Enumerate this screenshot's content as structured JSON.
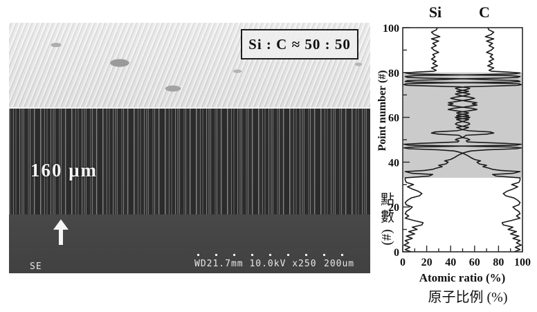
{
  "sem_image": {
    "ratio_box_label": "Si : C ≈ 50 : 50",
    "thickness_label": "160 μm",
    "detector_label": "SE",
    "metadata_label": "WD21.7mm 10.0kV x250",
    "scalebar_label": "200um"
  },
  "chart_data": {
    "type": "line",
    "title": "",
    "series_labels": [
      "Si",
      "C"
    ],
    "xlabel": "Atomic ratio (%)",
    "xlabel_zh": "原子比例 (%)",
    "ylabel": "Point number (#)",
    "ylabel_zh_chars": [
      "點",
      "數",
      "(#)"
    ],
    "xlim": [
      0,
      100
    ],
    "ylim": [
      0,
      100
    ],
    "x_ticks": [
      0,
      20,
      40,
      60,
      80,
      100
    ],
    "y_ticks": [
      0,
      20,
      40,
      60,
      80,
      100
    ],
    "minor_tick_step": 10,
    "grid": false,
    "legend_position": "above-plot",
    "shaded_band_y": [
      33,
      80
    ],
    "band_color": "#cbcbcb",
    "axis_color": "#2a2a2a",
    "line_color": "#1a1a1a",
    "note": "EDS line scan: atomic ratio (x) vs point number (y); Si and C converge to ~50:50 inside shaded film region (points 33-80)",
    "series": [
      {
        "name": "Si",
        "points": [
          [
            0,
            7
          ],
          [
            1,
            2
          ],
          [
            2,
            6
          ],
          [
            3,
            1
          ],
          [
            4,
            5
          ],
          [
            5,
            2
          ],
          [
            6,
            8
          ],
          [
            7,
            3
          ],
          [
            8,
            10
          ],
          [
            9,
            5
          ],
          [
            10,
            12
          ],
          [
            11,
            8
          ],
          [
            12,
            16
          ],
          [
            13,
            17
          ],
          [
            14,
            9
          ],
          [
            15,
            2
          ],
          [
            16,
            5
          ],
          [
            17,
            2
          ],
          [
            18,
            3
          ],
          [
            19,
            6
          ],
          [
            20,
            8
          ],
          [
            21,
            3
          ],
          [
            22,
            2
          ],
          [
            23,
            4
          ],
          [
            24,
            7
          ],
          [
            25,
            14
          ],
          [
            26,
            16
          ],
          [
            27,
            13
          ],
          [
            28,
            8
          ],
          [
            29,
            4
          ],
          [
            30,
            9
          ],
          [
            31,
            3
          ],
          [
            32,
            2
          ],
          [
            33,
            2
          ],
          [
            33.8,
            22
          ],
          [
            34.5,
            25
          ],
          [
            35,
            8
          ],
          [
            35.8,
            2
          ],
          [
            36.3,
            18
          ],
          [
            36.8,
            25
          ],
          [
            37.3,
            28
          ],
          [
            38,
            33
          ],
          [
            38.6,
            30
          ],
          [
            39.2,
            36
          ],
          [
            40,
            38
          ],
          [
            40.6,
            35
          ],
          [
            41.2,
            40
          ],
          [
            42,
            43
          ],
          [
            43,
            46
          ],
          [
            44,
            50
          ],
          [
            44.5,
            53
          ],
          [
            45,
            57
          ],
          [
            45.5,
            70
          ],
          [
            46,
            95
          ],
          [
            46.4,
            99
          ],
          [
            46.8,
            90
          ],
          [
            47.2,
            45
          ],
          [
            47.6,
            5
          ],
          [
            48,
            1
          ],
          [
            48.4,
            15
          ],
          [
            49,
            46
          ],
          [
            49.5,
            47
          ],
          [
            50,
            44
          ],
          [
            50.5,
            46
          ],
          [
            51,
            50
          ],
          [
            52,
            47
          ],
          [
            52.5,
            30
          ],
          [
            53,
            24
          ],
          [
            53.5,
            27
          ],
          [
            54,
            45
          ],
          [
            54.5,
            50
          ],
          [
            55,
            52
          ],
          [
            55.5,
            55
          ],
          [
            56,
            50
          ],
          [
            56.5,
            46
          ],
          [
            57,
            44
          ],
          [
            57.5,
            45
          ],
          [
            58,
            49
          ],
          [
            58.5,
            52
          ],
          [
            59,
            55
          ],
          [
            59.4,
            50
          ],
          [
            59.7,
            45
          ],
          [
            60,
            44
          ],
          [
            60.4,
            50
          ],
          [
            60.7,
            55
          ],
          [
            61,
            54
          ],
          [
            61.4,
            50
          ],
          [
            61.7,
            46
          ],
          [
            62,
            45
          ],
          [
            62.5,
            50
          ],
          [
            63,
            56
          ],
          [
            63.5,
            62
          ],
          [
            64,
            58
          ],
          [
            64.5,
            50
          ],
          [
            65,
            44
          ],
          [
            65.5,
            38
          ],
          [
            66,
            42
          ],
          [
            66.5,
            38
          ],
          [
            67,
            44
          ],
          [
            67.5,
            50
          ],
          [
            68,
            56
          ],
          [
            68.5,
            60
          ],
          [
            69,
            56
          ],
          [
            69.5,
            50
          ],
          [
            70,
            46
          ],
          [
            70.4,
            44
          ],
          [
            70.8,
            48
          ],
          [
            71.2,
            52
          ],
          [
            71.6,
            55
          ],
          [
            72,
            50
          ],
          [
            72.5,
            46
          ],
          [
            73,
            44
          ],
          [
            73.3,
            47
          ],
          [
            73.6,
            52
          ],
          [
            74,
            80
          ],
          [
            74.3,
            96
          ],
          [
            74.6,
            99
          ],
          [
            75,
            97
          ],
          [
            75.4,
            60
          ],
          [
            75.7,
            10
          ],
          [
            76,
            2
          ],
          [
            76.4,
            4
          ],
          [
            76.8,
            30
          ],
          [
            77.2,
            48
          ],
          [
            77.5,
            80
          ],
          [
            77.8,
            96
          ],
          [
            78.2,
            98
          ],
          [
            78.6,
            90
          ],
          [
            79,
            40
          ],
          [
            79.4,
            6
          ],
          [
            79.8,
            2
          ],
          [
            80.2,
            12
          ],
          [
            80.6,
            26
          ],
          [
            81,
            28
          ],
          [
            82,
            24
          ],
          [
            83,
            29
          ],
          [
            84,
            25
          ],
          [
            85,
            28
          ],
          [
            86,
            24
          ],
          [
            87,
            27
          ],
          [
            88,
            25
          ],
          [
            89,
            30
          ],
          [
            90,
            26
          ],
          [
            91,
            24
          ],
          [
            92,
            28
          ],
          [
            93,
            25
          ],
          [
            94,
            30
          ],
          [
            95,
            24
          ],
          [
            96,
            31
          ],
          [
            97,
            26
          ],
          [
            98,
            24
          ],
          [
            99,
            28
          ],
          [
            100,
            29
          ]
        ]
      },
      {
        "name": "C",
        "points": [
          [
            0,
            93
          ],
          [
            1,
            98
          ],
          [
            2,
            94
          ],
          [
            3,
            99
          ],
          [
            4,
            95
          ],
          [
            5,
            98
          ],
          [
            6,
            92
          ],
          [
            7,
            97
          ],
          [
            8,
            90
          ],
          [
            9,
            95
          ],
          [
            10,
            88
          ],
          [
            11,
            92
          ],
          [
            12,
            84
          ],
          [
            13,
            83
          ],
          [
            14,
            91
          ],
          [
            15,
            98
          ],
          [
            16,
            95
          ],
          [
            17,
            98
          ],
          [
            18,
            97
          ],
          [
            19,
            94
          ],
          [
            20,
            92
          ],
          [
            21,
            97
          ],
          [
            22,
            98
          ],
          [
            23,
            96
          ],
          [
            24,
            93
          ],
          [
            25,
            86
          ],
          [
            26,
            84
          ],
          [
            27,
            87
          ],
          [
            28,
            92
          ],
          [
            29,
            96
          ],
          [
            30,
            91
          ],
          [
            31,
            97
          ],
          [
            32,
            98
          ],
          [
            33,
            98
          ],
          [
            33.8,
            78
          ],
          [
            34.5,
            75
          ],
          [
            35,
            92
          ],
          [
            35.8,
            98
          ],
          [
            36.3,
            82
          ],
          [
            36.8,
            75
          ],
          [
            37.3,
            72
          ],
          [
            38,
            67
          ],
          [
            38.6,
            70
          ],
          [
            39.2,
            64
          ],
          [
            40,
            62
          ],
          [
            40.6,
            65
          ],
          [
            41.2,
            60
          ],
          [
            42,
            57
          ],
          [
            43,
            54
          ],
          [
            44,
            50
          ],
          [
            44.5,
            47
          ],
          [
            45,
            43
          ],
          [
            45.5,
            30
          ],
          [
            46,
            5
          ],
          [
            46.4,
            1
          ],
          [
            46.8,
            10
          ],
          [
            47.2,
            55
          ],
          [
            47.6,
            95
          ],
          [
            48,
            99
          ],
          [
            48.4,
            85
          ],
          [
            49,
            54
          ],
          [
            49.5,
            53
          ],
          [
            50,
            56
          ],
          [
            50.5,
            54
          ],
          [
            51,
            50
          ],
          [
            52,
            53
          ],
          [
            52.5,
            70
          ],
          [
            53,
            76
          ],
          [
            53.5,
            73
          ],
          [
            54,
            55
          ],
          [
            54.5,
            50
          ],
          [
            55,
            48
          ],
          [
            55.5,
            45
          ],
          [
            56,
            50
          ],
          [
            56.5,
            54
          ],
          [
            57,
            56
          ],
          [
            57.5,
            55
          ],
          [
            58,
            51
          ],
          [
            58.5,
            48
          ],
          [
            59,
            45
          ],
          [
            59.4,
            50
          ],
          [
            59.7,
            55
          ],
          [
            60,
            56
          ],
          [
            60.4,
            50
          ],
          [
            60.7,
            45
          ],
          [
            61,
            46
          ],
          [
            61.4,
            50
          ],
          [
            61.7,
            54
          ],
          [
            62,
            55
          ],
          [
            62.5,
            50
          ],
          [
            63,
            44
          ],
          [
            63.5,
            38
          ],
          [
            64,
            42
          ],
          [
            64.5,
            50
          ],
          [
            65,
            56
          ],
          [
            65.5,
            62
          ],
          [
            66,
            58
          ],
          [
            66.5,
            62
          ],
          [
            67,
            56
          ],
          [
            67.5,
            50
          ],
          [
            68,
            44
          ],
          [
            68.5,
            40
          ],
          [
            69,
            44
          ],
          [
            69.5,
            50
          ],
          [
            70,
            54
          ],
          [
            70.4,
            56
          ],
          [
            70.8,
            52
          ],
          [
            71.2,
            48
          ],
          [
            71.6,
            45
          ],
          [
            72,
            50
          ],
          [
            72.5,
            54
          ],
          [
            73,
            56
          ],
          [
            73.3,
            53
          ],
          [
            73.6,
            48
          ],
          [
            74,
            20
          ],
          [
            74.3,
            4
          ],
          [
            74.6,
            1
          ],
          [
            75,
            3
          ],
          [
            75.4,
            40
          ],
          [
            75.7,
            90
          ],
          [
            76,
            98
          ],
          [
            76.4,
            96
          ],
          [
            76.8,
            70
          ],
          [
            77.2,
            52
          ],
          [
            77.5,
            20
          ],
          [
            77.8,
            4
          ],
          [
            78.2,
            2
          ],
          [
            78.6,
            10
          ],
          [
            79,
            60
          ],
          [
            79.4,
            94
          ],
          [
            79.8,
            98
          ],
          [
            80.2,
            88
          ],
          [
            80.6,
            74
          ],
          [
            81,
            72
          ],
          [
            82,
            76
          ],
          [
            83,
            71
          ],
          [
            84,
            75
          ],
          [
            85,
            72
          ],
          [
            86,
            76
          ],
          [
            87,
            73
          ],
          [
            88,
            75
          ],
          [
            89,
            70
          ],
          [
            90,
            74
          ],
          [
            91,
            76
          ],
          [
            92,
            72
          ],
          [
            93,
            75
          ],
          [
            94,
            70
          ],
          [
            95,
            76
          ],
          [
            96,
            69
          ],
          [
            97,
            74
          ],
          [
            98,
            76
          ],
          [
            99,
            72
          ],
          [
            100,
            71
          ]
        ]
      }
    ]
  }
}
